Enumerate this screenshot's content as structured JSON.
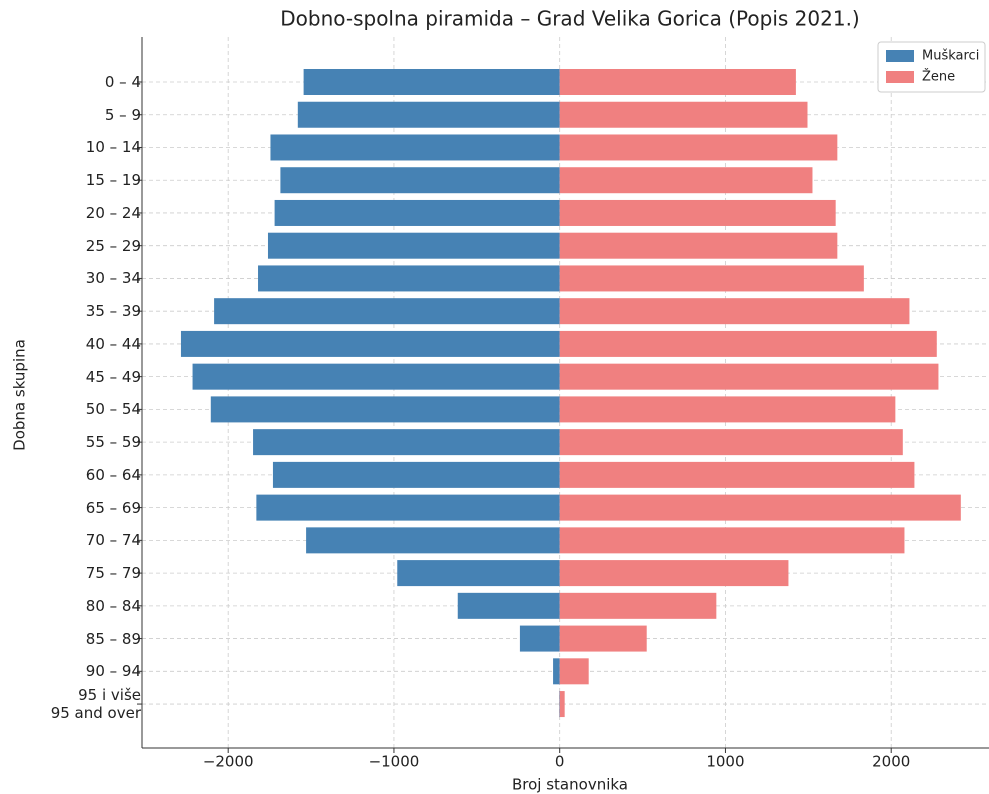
{
  "chart_data": {
    "type": "barh_pyramid",
    "title": "Dobno-spolna piramida – Grad Velika Gorica (Popis 2021.)",
    "x_label": "Broj stanovnika",
    "y_label": "Dobna skupina",
    "categories": [
      "0 – 4",
      "5 – 9",
      "10 – 14",
      "15 – 19",
      "20 – 24",
      "25 – 29",
      "30 – 34",
      "35 – 39",
      "40 – 44",
      "45 – 49",
      "50 – 54",
      "55 – 59",
      "60 – 64",
      "65 – 69",
      "70 – 74",
      "75 – 79",
      "80 – 84",
      "85 – 89",
      "90 – 94",
      "95 i više\n95 and over"
    ],
    "series": [
      {
        "name": "Muškarci",
        "color": "#4682b4",
        "values": [
          -1545,
          -1580,
          -1745,
          -1685,
          -1720,
          -1760,
          -1820,
          -2085,
          -2285,
          -2215,
          -2105,
          -1850,
          -1730,
          -1830,
          -1530,
          -980,
          -615,
          -240,
          -40,
          -3
        ]
      },
      {
        "name": "Žene",
        "color": "#f08080",
        "values": [
          1425,
          1495,
          1675,
          1525,
          1665,
          1675,
          1835,
          2110,
          2275,
          2285,
          2025,
          2070,
          2140,
          2420,
          2080,
          1380,
          945,
          525,
          175,
          30
        ]
      }
    ],
    "xlim": [
      -2520,
      2590
    ],
    "xticks": [
      {
        "value": -2000,
        "label": "−2000"
      },
      {
        "value": -1000,
        "label": "−1000"
      },
      0,
      1000,
      2000
    ],
    "grid": true,
    "legend": "upper right"
  }
}
